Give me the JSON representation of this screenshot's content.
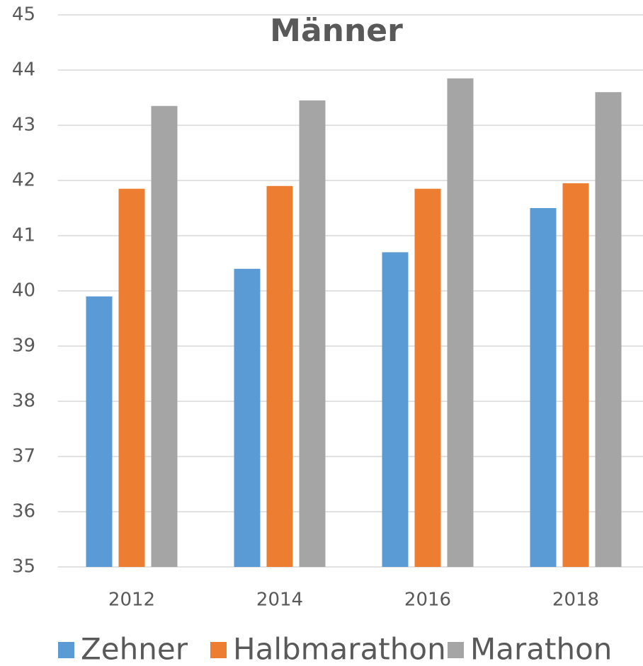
{
  "chart_data": {
    "type": "bar",
    "title": "Männer",
    "categories": [
      "2012",
      "2014",
      "2016",
      "2018"
    ],
    "series": [
      {
        "name": "Zehner",
        "color": "#5b9bd5",
        "values": [
          39.9,
          40.4,
          40.7,
          41.5
        ]
      },
      {
        "name": "Halbmarathon",
        "color": "#ed7d31",
        "values": [
          41.85,
          41.9,
          41.85,
          41.95
        ]
      },
      {
        "name": "Marathon",
        "color": "#a5a5a5",
        "values": [
          43.35,
          43.45,
          43.85,
          43.6
        ]
      }
    ],
    "ylim": [
      35,
      45
    ],
    "yticks": [
      35,
      36,
      37,
      38,
      39,
      40,
      41,
      42,
      43,
      44,
      45
    ],
    "grid": true,
    "legend": "bottom"
  }
}
